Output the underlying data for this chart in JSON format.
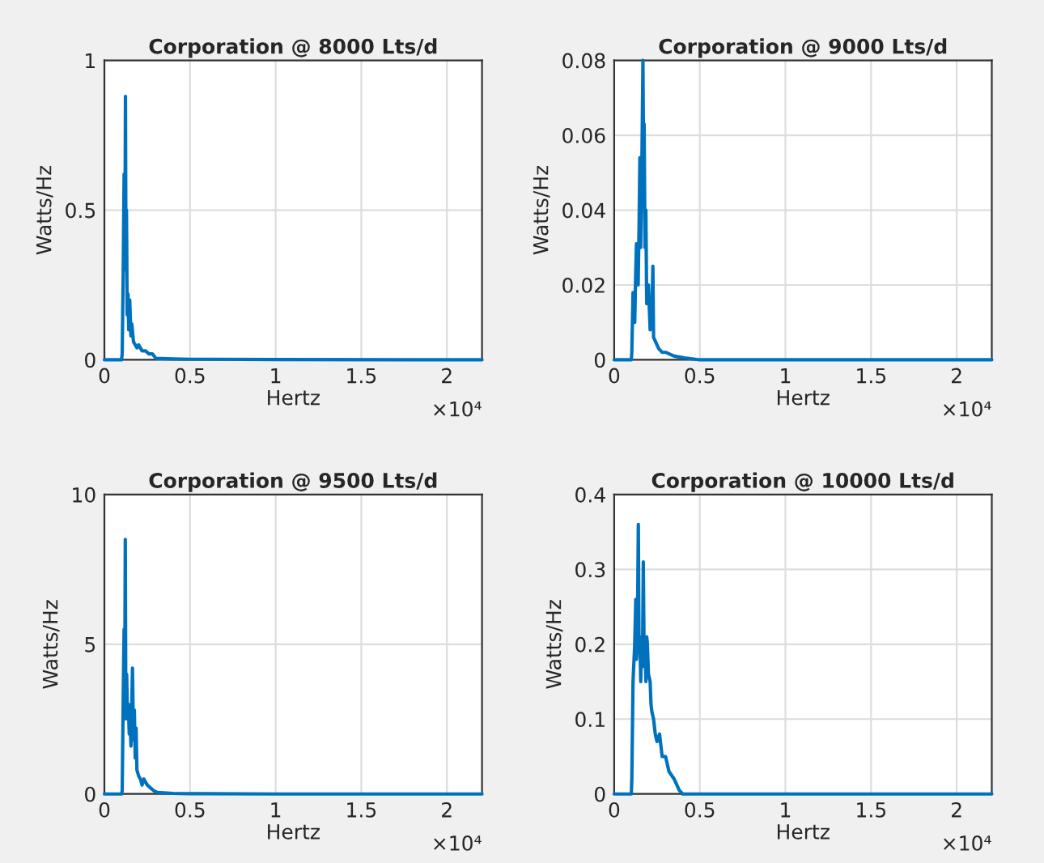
{
  "chart_data": [
    {
      "type": "line",
      "title": "Corporation @ 8000 Lts/d",
      "xlabel": "Hertz",
      "ylabel": "Watts/Hz",
      "annotations": [
        "×10⁴"
      ],
      "grid": true,
      "xlim": [
        0,
        2.205
      ],
      "ylim": [
        0,
        1
      ],
      "xticks": [
        0,
        0.5,
        1,
        1.5,
        2
      ],
      "yticks": [
        0,
        0.5,
        1
      ],
      "series": [
        {
          "color": "#0072bd",
          "x": [
            0,
            0.1,
            0.104,
            0.11,
            0.115,
            0.12,
            0.123,
            0.126,
            0.129,
            0.133,
            0.138,
            0.142,
            0.148,
            0.155,
            0.16,
            0.17,
            0.18,
            0.19,
            0.2,
            0.22,
            0.24,
            0.26,
            0.28,
            0.3,
            0.4,
            0.5,
            1,
            2.205
          ],
          "values": [
            0,
            0,
            0.02,
            0.3,
            0.62,
            0.4,
            0.88,
            0.3,
            0.5,
            0.15,
            0.22,
            0.1,
            0.2,
            0.08,
            0.12,
            0.06,
            0.05,
            0.04,
            0.05,
            0.03,
            0.03,
            0.02,
            0.02,
            0.005,
            0.003,
            0.002,
            0.001,
            0
          ]
        }
      ]
    },
    {
      "type": "line",
      "title": "Corporation @ 9000 Lts/d",
      "xlabel": "Hertz",
      "ylabel": "Watts/Hz",
      "annotations": [
        "×10⁴"
      ],
      "grid": true,
      "xlim": [
        0,
        2.205
      ],
      "ylim": [
        0,
        0.08
      ],
      "xticks": [
        0,
        0.5,
        1,
        1.5,
        2
      ],
      "yticks": [
        0,
        0.02,
        0.04,
        0.06,
        0.08
      ],
      "series": [
        {
          "color": "#0072bd",
          "x": [
            0,
            0.1,
            0.103,
            0.11,
            0.12,
            0.125,
            0.13,
            0.14,
            0.145,
            0.15,
            0.155,
            0.16,
            0.168,
            0.172,
            0.175,
            0.18,
            0.185,
            0.19,
            0.2,
            0.21,
            0.22,
            0.226,
            0.23,
            0.24,
            0.26,
            0.28,
            0.3,
            0.35,
            0.41,
            0.5,
            1,
            2.205
          ],
          "values": [
            0,
            0,
            0.002,
            0.018,
            0.01,
            0.022,
            0.031,
            0.02,
            0.035,
            0.054,
            0.03,
            0.045,
            0.08,
            0.05,
            0.063,
            0.03,
            0.04,
            0.015,
            0.02,
            0.008,
            0.012,
            0.025,
            0.006,
            0.005,
            0.003,
            0.002,
            0.002,
            0.001,
            0.0005,
            0,
            0,
            0
          ]
        }
      ]
    },
    {
      "type": "line",
      "title": "Corporation @ 9500 Lts/d",
      "xlabel": "Hertz",
      "ylabel": "Watts/Hz",
      "annotations": [
        "×10⁴"
      ],
      "grid": true,
      "xlim": [
        0,
        2.205
      ],
      "ylim": [
        0,
        10
      ],
      "xticks": [
        0,
        0.5,
        1,
        1.5,
        2
      ],
      "yticks": [
        0,
        5,
        10
      ],
      "series": [
        {
          "color": "#0072bd",
          "x": [
            0,
            0.1,
            0.104,
            0.11,
            0.115,
            0.118,
            0.122,
            0.125,
            0.13,
            0.135,
            0.14,
            0.145,
            0.15,
            0.155,
            0.164,
            0.17,
            0.175,
            0.18,
            0.185,
            0.19,
            0.2,
            0.21,
            0.22,
            0.23,
            0.25,
            0.27,
            0.29,
            0.31,
            0.4,
            0.5,
            1,
            2.205
          ],
          "values": [
            0,
            0,
            0.1,
            3.3,
            5.5,
            2.5,
            8.5,
            3,
            4,
            2.5,
            3,
            2,
            2.5,
            1.6,
            4.2,
            1.8,
            2.8,
            1.2,
            2.2,
            0.8,
            0.6,
            0.5,
            0.3,
            0.5,
            0.3,
            0.2,
            0.1,
            0.05,
            0.02,
            0.01,
            0,
            0
          ]
        }
      ]
    },
    {
      "type": "line",
      "title": "Corporation @ 10000 Lts/d",
      "xlabel": "Hertz",
      "ylabel": "Watts/Hz",
      "annotations": [
        "×10⁴"
      ],
      "grid": true,
      "xlim": [
        0,
        2.205
      ],
      "ylim": [
        0,
        0.4
      ],
      "xticks": [
        0,
        0.5,
        1,
        1.5,
        2
      ],
      "yticks": [
        0,
        0.1,
        0.2,
        0.3,
        0.4
      ],
      "series": [
        {
          "color": "#0072bd",
          "x": [
            0,
            0.1,
            0.103,
            0.11,
            0.12,
            0.126,
            0.13,
            0.135,
            0.141,
            0.145,
            0.15,
            0.155,
            0.16,
            0.165,
            0.17,
            0.175,
            0.18,
            0.185,
            0.19,
            0.194,
            0.2,
            0.21,
            0.215,
            0.22,
            0.23,
            0.24,
            0.25,
            0.265,
            0.28,
            0.3,
            0.32,
            0.35,
            0.38,
            0.4,
            0.5,
            1,
            2.205
          ],
          "values": [
            0,
            0,
            0.02,
            0.15,
            0.2,
            0.26,
            0.18,
            0.2,
            0.36,
            0.2,
            0.21,
            0.15,
            0.2,
            0.17,
            0.31,
            0.18,
            0.2,
            0.15,
            0.21,
            0.2,
            0.16,
            0.15,
            0.12,
            0.11,
            0.1,
            0.08,
            0.07,
            0.08,
            0.05,
            0.05,
            0.03,
            0.02,
            0.005,
            0,
            0,
            0,
            0
          ]
        }
      ]
    }
  ]
}
